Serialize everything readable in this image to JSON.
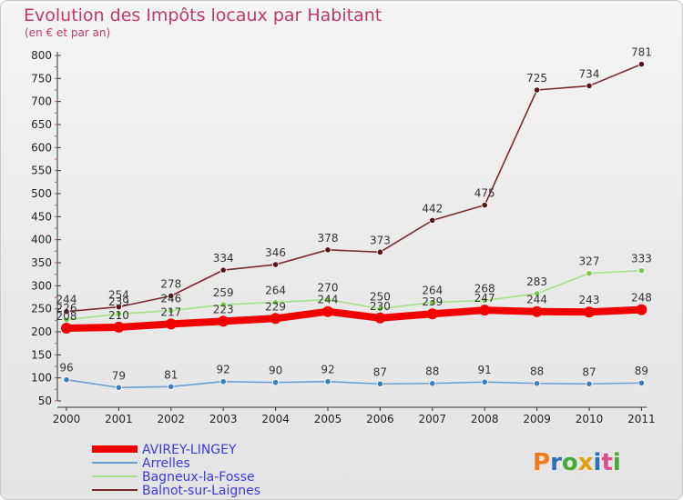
{
  "chart_data": {
    "type": "line",
    "title": "Evolution des Impôts locaux par Habitant",
    "subtitle": "(en € et par an)",
    "x": [
      2000,
      2001,
      2002,
      2003,
      2004,
      2005,
      2006,
      2007,
      2008,
      2009,
      2010,
      2011
    ],
    "x_tick_labels": [
      "2000",
      "2001",
      "2002",
      "2003",
      "2004",
      "2005",
      "2006",
      "2007",
      "2008",
      "2009",
      "2010",
      "2011"
    ],
    "ylim": [
      50,
      800
    ],
    "y_ticks": [
      50,
      100,
      150,
      200,
      250,
      300,
      350,
      400,
      450,
      500,
      550,
      600,
      650,
      700,
      750,
      800
    ],
    "y_tick_labels": [
      "50",
      "100",
      "150",
      "200",
      "250",
      "300",
      "350",
      "400",
      "450",
      "500",
      "550",
      "600",
      "650",
      "700",
      "750",
      "800"
    ],
    "grid": false,
    "legend_position": "bottom-left",
    "series": [
      {
        "name": "Balnot-sur-Laignes",
        "color": "#7a2a2a",
        "marker_color": "#5a1414",
        "values": [
          244,
          254,
          278,
          334,
          346,
          378,
          373,
          442,
          475,
          725,
          734,
          781
        ],
        "labels": [
          "244",
          "254",
          "278",
          "334",
          "346",
          "378",
          "373",
          "442",
          "475",
          "725",
          "734",
          "781"
        ]
      },
      {
        "name": "Bagneux-la-Fosse",
        "color": "#a6e08a",
        "marker_color": "#79c84a",
        "values": [
          226,
          239,
          246,
          259,
          264,
          270,
          250,
          264,
          268,
          283,
          327,
          333
        ],
        "labels": [
          "226",
          "239",
          "246",
          "259",
          "264",
          "270",
          "250",
          "264",
          "268",
          "283",
          "327",
          "333"
        ]
      },
      {
        "name": "AVIREY-LINGEY",
        "color": "#f00000",
        "values": [
          208,
          210,
          217,
          223,
          229,
          244,
          230,
          239,
          247,
          244,
          243,
          248
        ],
        "labels": [
          "208",
          "210",
          "217",
          "223",
          "229",
          "244",
          "230",
          "239",
          "247",
          "244",
          "243",
          "248"
        ]
      },
      {
        "name": "Arrelles",
        "color": "#6a9fd0",
        "marker_color": "#3a7fc0",
        "values": [
          96,
          79,
          81,
          92,
          90,
          92,
          87,
          88,
          91,
          88,
          87,
          89
        ],
        "labels": [
          "96",
          "79",
          "81",
          "92",
          "90",
          "92",
          "87",
          "88",
          "91",
          "88",
          "87",
          "89"
        ]
      }
    ],
    "legend": [
      "AVIREY-LINGEY",
      "Arrelles",
      "Bagneux-la-Fosse",
      "Balnot-sur-Laignes"
    ]
  },
  "logo": {
    "text": "Proxiti"
  }
}
